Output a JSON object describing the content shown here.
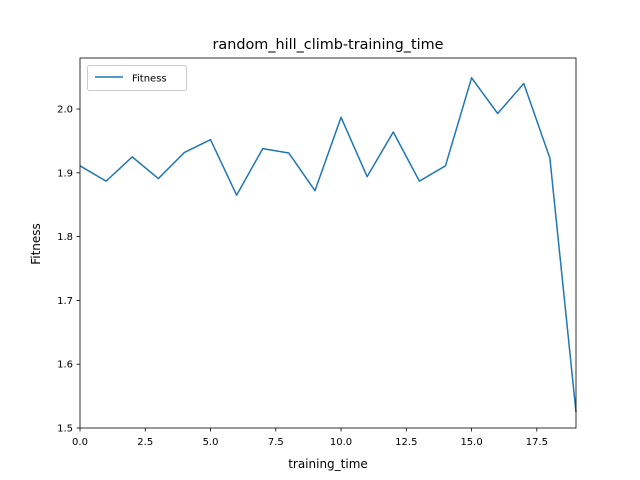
{
  "chart_data": {
    "type": "line",
    "title": "random_hill_climb-training_time",
    "xlabel": "training_time",
    "ylabel": "Fitness",
    "xlim": [
      0,
      19
    ],
    "ylim": [
      1.5,
      2.08
    ],
    "xticks": [
      0.0,
      2.5,
      5.0,
      7.5,
      10.0,
      12.5,
      15.0,
      17.5
    ],
    "xtick_labels": [
      "0.0",
      "2.5",
      "5.0",
      "7.5",
      "10.0",
      "12.5",
      "15.0",
      "17.5"
    ],
    "yticks": [
      1.5,
      1.6,
      1.7,
      1.8,
      1.9,
      2.0
    ],
    "ytick_labels": [
      "1.5",
      "1.6",
      "1.7",
      "1.8",
      "1.9",
      "2.0"
    ],
    "grid": false,
    "legend": "upper-left",
    "series": [
      {
        "name": "Fitness",
        "color": "#1f77b4",
        "x": [
          0,
          1,
          2,
          3,
          4,
          5,
          6,
          7,
          8,
          9,
          10,
          11,
          12,
          13,
          14,
          15,
          16,
          17,
          18,
          19
        ],
        "y": [
          1.911,
          1.887,
          1.925,
          1.891,
          1.932,
          1.952,
          1.865,
          1.938,
          1.931,
          1.872,
          1.987,
          1.894,
          1.964,
          1.887,
          1.911,
          2.049,
          1.993,
          2.04,
          1.923,
          1.525
        ]
      }
    ]
  }
}
